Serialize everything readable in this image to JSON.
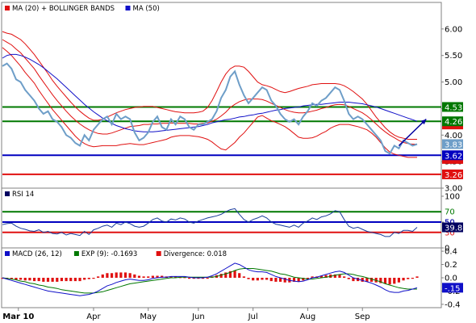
{
  "chart_data": {
    "type": "line",
    "price_panel": {
      "legend": [
        {
          "label": "MA (20) + BOLLINGER BANDS",
          "color": "#e01010"
        },
        {
          "label": "MA (50)",
          "color": "#1010c8"
        }
      ],
      "ylim": [
        3.0,
        6.5
      ],
      "yticks": [
        "6.00",
        "5.50",
        "5.00",
        "4.50",
        "4.00",
        "3.50",
        "3.00"
      ],
      "colors": {
        "price": "#6e9ec8",
        "ma20": "#e01010",
        "ma50": "#1010c8"
      },
      "price": [
        5.3,
        5.35,
        5.25,
        5.05,
        5.0,
        4.85,
        4.75,
        4.65,
        4.5,
        4.4,
        4.45,
        4.3,
        4.25,
        4.15,
        4.0,
        3.95,
        3.85,
        3.8,
        4.0,
        3.9,
        4.1,
        4.2,
        4.3,
        4.35,
        4.2,
        4.4,
        4.3,
        4.35,
        4.3,
        4.05,
        3.9,
        3.95,
        4.05,
        4.25,
        4.35,
        4.15,
        4.1,
        4.3,
        4.2,
        4.35,
        4.3,
        4.15,
        4.1,
        4.2,
        4.2,
        4.25,
        4.3,
        4.45,
        4.7,
        4.85,
        5.1,
        5.2,
        4.95,
        4.75,
        4.6,
        4.7,
        4.8,
        4.9,
        4.85,
        4.65,
        4.55,
        4.4,
        4.3,
        4.25,
        4.3,
        4.2,
        4.35,
        4.45,
        4.6,
        4.55,
        4.65,
        4.7,
        4.8,
        4.9,
        4.85,
        4.65,
        4.4,
        4.3,
        4.35,
        4.3,
        4.2,
        4.1,
        4.0,
        3.9,
        3.7,
        3.65,
        3.8,
        3.75,
        3.9,
        3.85,
        3.8,
        3.83
      ],
      "ma20": [
        5.8,
        5.75,
        5.7,
        5.62,
        5.55,
        5.45,
        5.35,
        5.25,
        5.12,
        5.0,
        4.88,
        4.76,
        4.65,
        4.55,
        4.45,
        4.36,
        4.28,
        4.21,
        4.15,
        4.1,
        4.06,
        4.03,
        4.02,
        4.02,
        4.04,
        4.07,
        4.1,
        4.13,
        4.16,
        4.17,
        4.18,
        4.2,
        4.2,
        4.21,
        4.21,
        4.22,
        4.22,
        4.23,
        4.22,
        4.22,
        4.22,
        4.22,
        4.21,
        4.21,
        4.22,
        4.23,
        4.26,
        4.3,
        4.36,
        4.43,
        4.52,
        4.58,
        4.63,
        4.66,
        4.68,
        4.68,
        4.68,
        4.67,
        4.64,
        4.6,
        4.56,
        4.52,
        4.48,
        4.45,
        4.43,
        4.42,
        4.42,
        4.43,
        4.45,
        4.47,
        4.5,
        4.52,
        4.55,
        4.57,
        4.58,
        4.57,
        4.54,
        4.5,
        4.46,
        4.42,
        4.36,
        4.29,
        4.21,
        4.13,
        4.06,
        4.0,
        3.95,
        3.9,
        3.86,
        3.84,
        3.83,
        3.83
      ],
      "bb_upper": [
        5.95,
        5.92,
        5.9,
        5.85,
        5.8,
        5.72,
        5.62,
        5.52,
        5.4,
        5.28,
        5.16,
        5.03,
        4.92,
        4.82,
        4.72,
        4.62,
        4.53,
        4.45,
        4.38,
        4.32,
        4.28,
        4.28,
        4.3,
        4.34,
        4.38,
        4.42,
        4.45,
        4.48,
        4.5,
        4.52,
        4.53,
        4.54,
        4.54,
        4.54,
        4.52,
        4.5,
        4.48,
        4.46,
        4.44,
        4.43,
        4.42,
        4.42,
        4.42,
        4.43,
        4.45,
        4.52,
        4.65,
        4.82,
        5.0,
        5.15,
        5.25,
        5.3,
        5.3,
        5.28,
        5.2,
        5.1,
        5.0,
        4.95,
        4.93,
        4.9,
        4.86,
        4.82,
        4.8,
        4.82,
        4.85,
        4.88,
        4.9,
        4.92,
        4.95,
        4.96,
        4.97,
        4.97,
        4.97,
        4.97,
        4.96,
        4.93,
        4.88,
        4.82,
        4.75,
        4.68,
        4.58,
        4.46,
        4.34,
        4.24,
        4.14,
        4.06,
        4.0,
        3.96,
        3.94,
        3.92,
        3.92,
        3.92
      ],
      "bb_lower": [
        5.65,
        5.58,
        5.5,
        5.4,
        5.3,
        5.18,
        5.08,
        4.98,
        4.84,
        4.72,
        4.6,
        4.48,
        4.38,
        4.28,
        4.18,
        4.08,
        3.98,
        3.9,
        3.84,
        3.8,
        3.78,
        3.79,
        3.8,
        3.8,
        3.8,
        3.8,
        3.82,
        3.83,
        3.84,
        3.83,
        3.82,
        3.82,
        3.84,
        3.86,
        3.88,
        3.9,
        3.92,
        3.96,
        3.98,
        3.99,
        3.99,
        3.99,
        3.98,
        3.97,
        3.95,
        3.92,
        3.87,
        3.8,
        3.74,
        3.72,
        3.79,
        3.86,
        3.96,
        4.04,
        4.14,
        4.24,
        4.34,
        4.37,
        4.32,
        4.27,
        4.24,
        4.2,
        4.16,
        4.1,
        4.03,
        3.96,
        3.94,
        3.94,
        3.95,
        3.98,
        4.03,
        4.07,
        4.13,
        4.17,
        4.2,
        4.2,
        4.2,
        4.18,
        4.16,
        4.13,
        4.1,
        4.04,
        3.96,
        3.86,
        3.76,
        3.68,
        3.64,
        3.62,
        3.6,
        3.58,
        3.58,
        3.58
      ],
      "ma50": [
        5.45,
        5.5,
        5.52,
        5.52,
        5.5,
        5.47,
        5.43,
        5.38,
        5.33,
        5.27,
        5.2,
        5.13,
        5.06,
        4.98,
        4.9,
        4.82,
        4.74,
        4.66,
        4.58,
        4.51,
        4.44,
        4.38,
        4.32,
        4.27,
        4.22,
        4.18,
        4.15,
        4.12,
        4.1,
        4.08,
        4.07,
        4.06,
        4.06,
        4.06,
        4.07,
        4.08,
        4.09,
        4.1,
        4.11,
        4.12,
        4.13,
        4.14,
        4.15,
        4.16,
        4.18,
        4.2,
        4.23,
        4.25,
        4.27,
        4.29,
        4.3,
        4.32,
        4.34,
        4.35,
        4.37,
        4.38,
        4.4,
        4.41,
        4.43,
        4.45,
        4.47,
        4.48,
        4.5,
        4.51,
        4.52,
        4.53,
        4.55,
        4.56,
        4.57,
        4.58,
        4.58,
        4.59,
        4.6,
        4.61,
        4.62,
        4.62,
        4.62,
        4.61,
        4.6,
        4.59,
        4.57,
        4.55,
        4.53,
        4.5,
        4.47,
        4.44,
        4.41,
        4.38,
        4.35,
        4.32,
        4.29,
        4.26
      ],
      "hlines": [
        {
          "value": 4.53,
          "label": "4.53",
          "color": "#007800"
        },
        {
          "value": 4.26,
          "label": "4.26",
          "color": "#007800"
        },
        {
          "value": 3.62,
          "label": "3.62",
          "color": "#0000c0"
        },
        {
          "value": 3.26,
          "label": "3.26",
          "color": "#e01010"
        }
      ],
      "tags": [
        {
          "value": 4.2,
          "label": "",
          "color": "#e01010"
        },
        {
          "value": 3.83,
          "label": "3.83",
          "color": "#6e9ec8"
        },
        {
          "value": 3.55,
          "label": "",
          "color": "#e01010"
        }
      ],
      "arrow": {
        "from": [
          87,
          3.8
        ],
        "to": [
          93,
          4.3
        ],
        "color": "#0000a0"
      }
    },
    "rsi_panel": {
      "legend": [
        {
          "label": "RSI 14",
          "color": "#000060"
        }
      ],
      "ylim": [
        0,
        100
      ],
      "yticks": [
        "100",
        "50",
        "0"
      ],
      "color": "#1a3c9a",
      "values": [
        45,
        47,
        48,
        42,
        38,
        36,
        33,
        32,
        35,
        30,
        32,
        28,
        27,
        30,
        25,
        28,
        26,
        24,
        32,
        26,
        35,
        38,
        42,
        44,
        40,
        48,
        45,
        50,
        47,
        42,
        40,
        42,
        48,
        55,
        58,
        52,
        50,
        56,
        54,
        58,
        56,
        50,
        48,
        52,
        55,
        58,
        60,
        62,
        65,
        70,
        74,
        76,
        65,
        55,
        50,
        55,
        58,
        62,
        58,
        50,
        46,
        44,
        42,
        40,
        44,
        40,
        48,
        52,
        58,
        55,
        60,
        62,
        66,
        72,
        70,
        55,
        42,
        38,
        40,
        36,
        32,
        30,
        28,
        26,
        22,
        22,
        30,
        28,
        34,
        34,
        32,
        39.8
      ],
      "hlines": [
        {
          "value": 70,
          "label": "70",
          "color": "#007800"
        },
        {
          "value": 50,
          "label": "50",
          "color": "#0000c0"
        },
        {
          "value": 30,
          "label": "30",
          "color": "#e01010"
        }
      ],
      "tag": {
        "value": 39.8,
        "label": "39.8",
        "color": "#000060"
      }
    },
    "macd_panel": {
      "legend": [
        {
          "label": "MACD (26, 12)",
          "color": "#1010c8"
        },
        {
          "label": "EXP (9): -0.1693",
          "color": "#007800"
        },
        {
          "label": "Divergence: 0.018",
          "color": "#e01010"
        }
      ],
      "ylim": [
        -0.45,
        0.45
      ],
      "yticks": [
        "0.4",
        "0.2",
        "0.0",
        "-0.2",
        "-0.4"
      ],
      "colors": {
        "macd": "#1010c8",
        "signal": "#007800",
        "divergence": "#e01010"
      },
      "macd": [
        0,
        -0.02,
        -0.04,
        -0.06,
        -0.08,
        -0.1,
        -0.12,
        -0.14,
        -0.16,
        -0.18,
        -0.2,
        -0.21,
        -0.22,
        -0.23,
        -0.24,
        -0.25,
        -0.26,
        -0.27,
        -0.26,
        -0.25,
        -0.23,
        -0.2,
        -0.16,
        -0.12,
        -0.1,
        -0.07,
        -0.05,
        -0.03,
        -0.02,
        -0.03,
        -0.04,
        -0.04,
        -0.03,
        -0.01,
        0.0,
        0.01,
        0.01,
        0.02,
        0.02,
        0.02,
        0.02,
        0.01,
        0.0,
        0.0,
        0.0,
        0.01,
        0.03,
        0.06,
        0.1,
        0.14,
        0.18,
        0.22,
        0.2,
        0.16,
        0.12,
        0.1,
        0.09,
        0.09,
        0.08,
        0.05,
        0.02,
        0.0,
        -0.02,
        -0.04,
        -0.05,
        -0.06,
        -0.05,
        -0.03,
        0.0,
        0.01,
        0.03,
        0.05,
        0.07,
        0.09,
        0.1,
        0.08,
        0.04,
        0.0,
        -0.02,
        -0.04,
        -0.06,
        -0.08,
        -0.11,
        -0.14,
        -0.18,
        -0.21,
        -0.22,
        -0.22,
        -0.2,
        -0.19,
        -0.17,
        -0.15
      ],
      "signal": [
        0,
        -0.01,
        -0.02,
        -0.03,
        -0.05,
        -0.06,
        -0.08,
        -0.09,
        -0.11,
        -0.12,
        -0.14,
        -0.15,
        -0.16,
        -0.18,
        -0.19,
        -0.2,
        -0.21,
        -0.22,
        -0.23,
        -0.23,
        -0.23,
        -0.22,
        -0.21,
        -0.19,
        -0.17,
        -0.15,
        -0.13,
        -0.11,
        -0.09,
        -0.08,
        -0.07,
        -0.06,
        -0.05,
        -0.04,
        -0.03,
        -0.02,
        -0.01,
        0.0,
        0.0,
        0.01,
        0.01,
        0.01,
        0.01,
        0.01,
        0.01,
        0.01,
        0.01,
        0.02,
        0.04,
        0.06,
        0.08,
        0.11,
        0.13,
        0.14,
        0.14,
        0.14,
        0.13,
        0.12,
        0.11,
        0.1,
        0.08,
        0.06,
        0.05,
        0.03,
        0.01,
        0.0,
        -0.01,
        -0.02,
        -0.02,
        -0.01,
        0.0,
        0.01,
        0.02,
        0.04,
        0.05,
        0.06,
        0.06,
        0.05,
        0.03,
        0.02,
        0.0,
        -0.02,
        -0.04,
        -0.06,
        -0.09,
        -0.11,
        -0.13,
        -0.15,
        -0.16,
        -0.17,
        -0.17,
        -0.17
      ],
      "tag": {
        "value": -0.15,
        "label": "-.15",
        "color": "#1010c8"
      }
    },
    "x_axis": {
      "labels": [
        {
          "index": 3.5,
          "label": "Mar 10",
          "bold": true
        },
        {
          "index": 20,
          "label": "Apr",
          "bold": false
        },
        {
          "index": 32,
          "label": "May",
          "bold": false
        },
        {
          "index": 43,
          "label": "Jun",
          "bold": false
        },
        {
          "index": 55,
          "label": "Jul",
          "bold": false
        },
        {
          "index": 67,
          "label": "Aug",
          "bold": false
        },
        {
          "index": 79,
          "label": "Sep",
          "bold": false
        }
      ]
    }
  }
}
